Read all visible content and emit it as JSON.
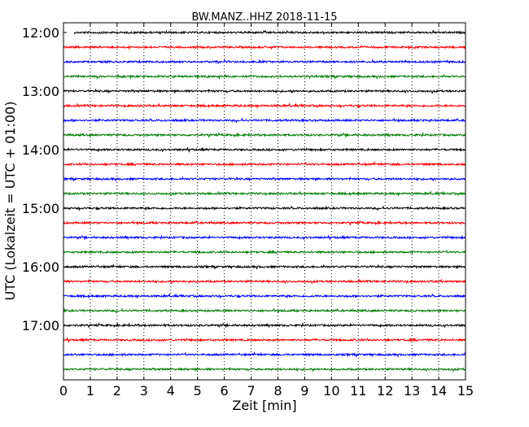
{
  "chart_data": {
    "type": "line",
    "title": "BW.MANZ..HHZ 2018-11-15",
    "xlabel": "Zeit  [min]",
    "ylabel": "UTC (Lokalzeit = UTC + 01:00)",
    "xlim": [
      0,
      15
    ],
    "x_ticks": [
      "0",
      "1",
      "2",
      "3",
      "4",
      "5",
      "6",
      "7",
      "8",
      "9",
      "10",
      "11",
      "12",
      "13",
      "14",
      "15"
    ],
    "y_ticks": [
      "12:00",
      "13:00",
      "14:00",
      "15:00",
      "16:00",
      "17:00"
    ],
    "grid": "vertical dotted",
    "trace_colors": [
      "#000000",
      "#ff0000",
      "#0000ff",
      "#008000"
    ],
    "trace_start_times": [
      "12:00",
      "12:15",
      "12:30",
      "12:45",
      "13:00",
      "13:15",
      "13:30",
      "13:45",
      "14:00",
      "14:15",
      "14:30",
      "14:45",
      "15:00",
      "15:15",
      "15:30",
      "15:45",
      "16:00",
      "16:15",
      "16:30",
      "16:45",
      "17:00",
      "17:15",
      "17:30",
      "17:45"
    ],
    "trace_duration_min": 15,
    "first_trace_start_min": 0.4
  }
}
